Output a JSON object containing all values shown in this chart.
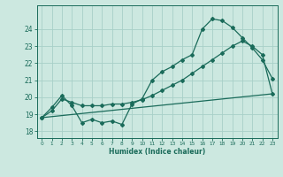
{
  "xlabel": "Humidex (Indice chaleur)",
  "bg_color": "#cce8e0",
  "line_color": "#1a6b5a",
  "grid_color": "#a8d0c8",
  "xlim": [
    -0.5,
    23.5
  ],
  "ylim": [
    17.6,
    25.4
  ],
  "yticks": [
    18,
    19,
    20,
    21,
    22,
    23,
    24
  ],
  "xticks": [
    0,
    1,
    2,
    3,
    4,
    5,
    6,
    7,
    8,
    9,
    10,
    11,
    12,
    13,
    14,
    15,
    16,
    17,
    18,
    19,
    20,
    21,
    22,
    23
  ],
  "line1_x": [
    0,
    1,
    2,
    3,
    4,
    5,
    6,
    7,
    8,
    9,
    10,
    11,
    12,
    13,
    14,
    15,
    16,
    17,
    18,
    19,
    20,
    21,
    22,
    23
  ],
  "line1_y": [
    18.8,
    19.4,
    20.1,
    19.5,
    18.5,
    18.7,
    18.5,
    18.6,
    18.4,
    19.6,
    19.9,
    21.0,
    21.5,
    21.8,
    22.2,
    22.5,
    24.0,
    24.6,
    24.5,
    24.1,
    23.5,
    22.9,
    22.2,
    21.1
  ],
  "line2_x": [
    0,
    1,
    2,
    3,
    4,
    5,
    6,
    7,
    8,
    9,
    10,
    11,
    12,
    13,
    14,
    15,
    16,
    17,
    18,
    19,
    20,
    21,
    22,
    23
  ],
  "line2_y": [
    18.8,
    19.2,
    19.9,
    19.7,
    19.5,
    19.5,
    19.5,
    19.6,
    19.6,
    19.7,
    19.85,
    20.1,
    20.4,
    20.7,
    21.0,
    21.4,
    21.8,
    22.2,
    22.6,
    23.0,
    23.3,
    23.0,
    22.5,
    20.2
  ],
  "line3_x": [
    0,
    23
  ],
  "line3_y": [
    18.8,
    20.2
  ]
}
